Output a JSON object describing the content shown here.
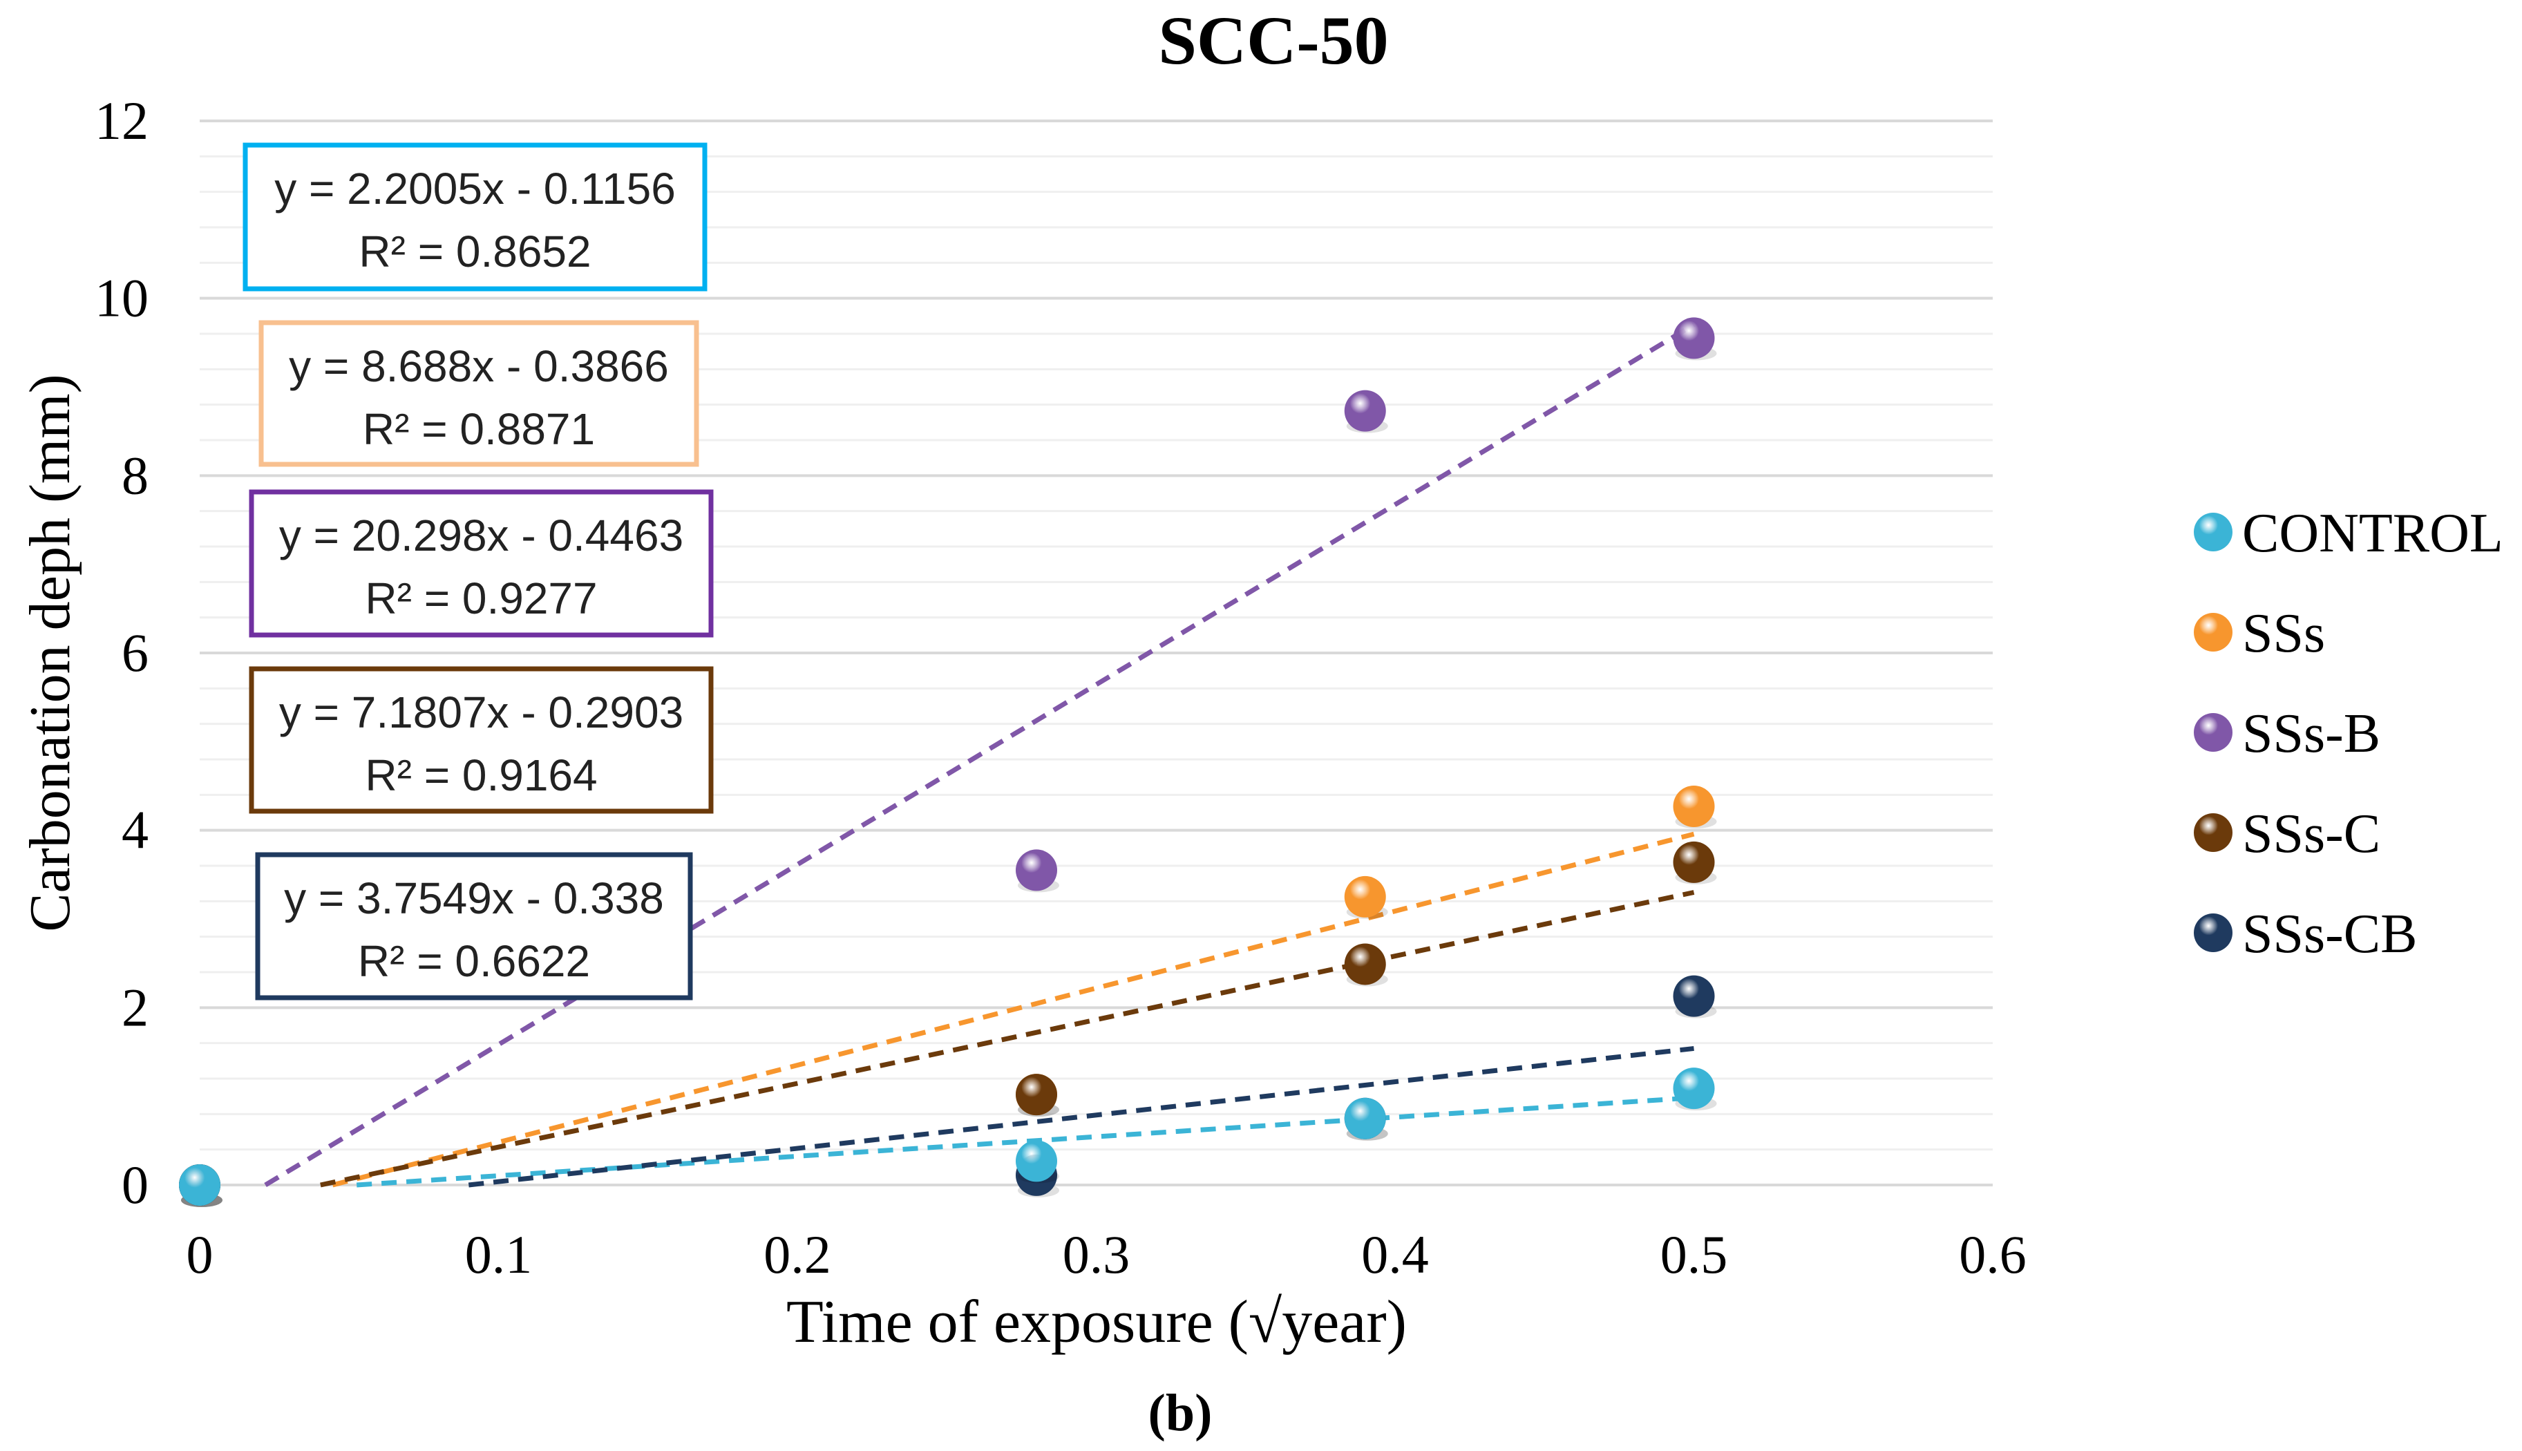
{
  "chart_data": {
    "type": "scatter",
    "title": "SCC-50",
    "xlabel": "Time of exposure (√year)",
    "ylabel": "Carbonation deph (mm)",
    "caption": "(b)",
    "xlim": [
      0,
      0.6
    ],
    "ylim": [
      0,
      12
    ],
    "x_ticks": [
      "0",
      "0.1",
      "0.2",
      "0.3",
      "0.4",
      "0.5",
      "0.6"
    ],
    "y_ticks": [
      "0",
      "2",
      "4",
      "6",
      "8",
      "10",
      "12"
    ],
    "grid": true,
    "legend_position": "right",
    "series": [
      {
        "name": "CONTROL",
        "color": "#3BB4D6",
        "box_color": "#00B0F0",
        "x": [
          0,
          0.28,
          0.39,
          0.5
        ],
        "y": [
          0,
          0.27,
          0.75,
          1.09
        ],
        "trend": {
          "slope": 2.2005,
          "intercept": -0.1156
        },
        "equation": "y = 2.2005x - 0.1156",
        "r2": "R² = 0.8652"
      },
      {
        "name": "SSs",
        "color": "#F7962E",
        "box_color": "#F8C08F",
        "x": [
          0,
          0.28,
          0.39,
          0.5
        ],
        "y": [
          0,
          1.02,
          3.25,
          4.27
        ],
        "trend": {
          "slope": 8.688,
          "intercept": -0.3866
        },
        "equation": "y = 8.688x - 0.3866",
        "r2": "R² = 0.8871"
      },
      {
        "name": "SSs-B",
        "color": "#8057A8",
        "box_color": "#7030A0",
        "x": [
          0,
          0.28,
          0.39,
          0.5
        ],
        "y": [
          0,
          3.55,
          8.73,
          9.55
        ],
        "trend": {
          "slope": 20.298,
          "intercept": -0.4463
        },
        "equation": "y = 20.298x - 0.4463",
        "r2": "R² = 0.9277"
      },
      {
        "name": "SSs-C",
        "color": "#6B3A0B",
        "box_color": "#6B3A0B",
        "x": [
          0,
          0.28,
          0.39,
          0.5
        ],
        "y": [
          0,
          1.02,
          2.49,
          3.64
        ],
        "trend": {
          "slope": 7.1807,
          "intercept": -0.2903
        },
        "equation": "y = 7.1807x - 0.2903",
        "r2": "R² = 0.9164"
      },
      {
        "name": "SSs-CB",
        "color": "#1F3A5F",
        "box_color": "#1F3A5F",
        "x": [
          0,
          0.28,
          0.39,
          0.5
        ],
        "y": [
          0,
          0.11,
          0.75,
          2.13
        ],
        "trend": {
          "slope": 3.7549,
          "intercept": -0.338
        },
        "equation": "y = 3.7549x - 0.338",
        "r2": "R² = 0.6622"
      }
    ]
  }
}
